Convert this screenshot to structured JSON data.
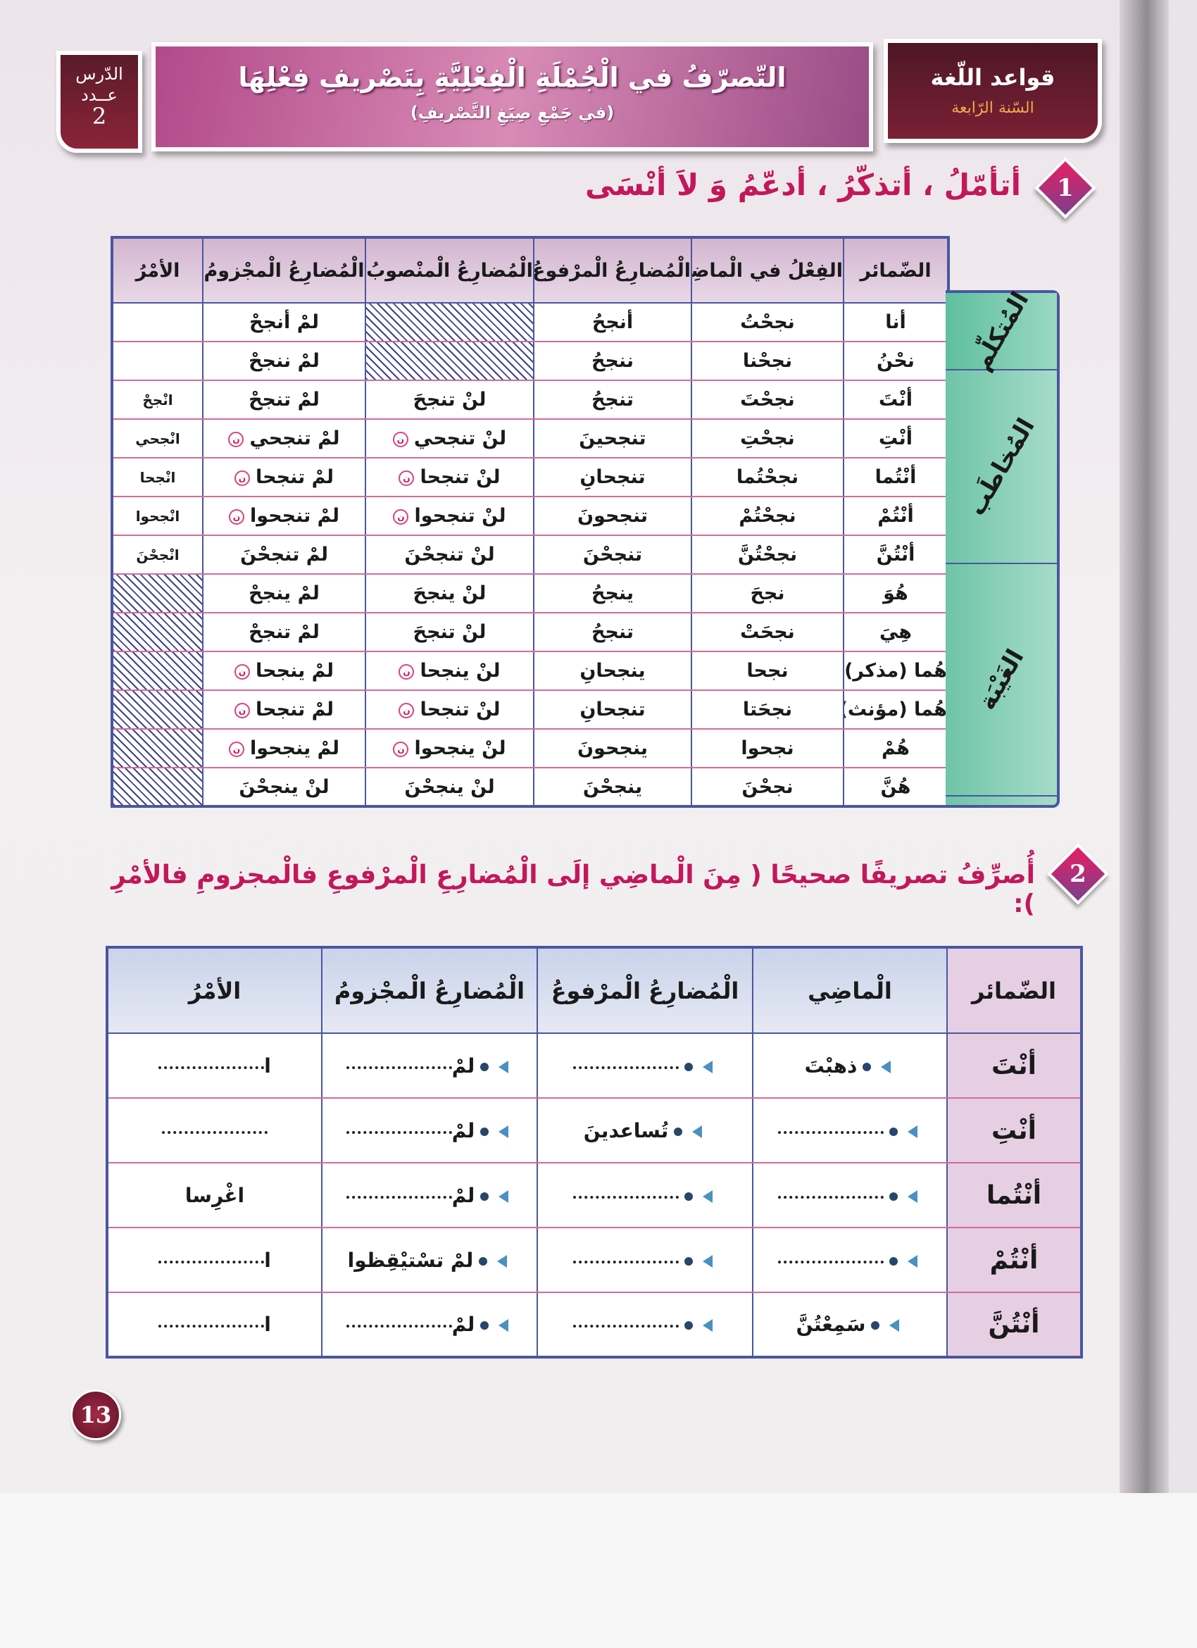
{
  "header": {
    "lesson": {
      "label": "الدّرس",
      "count_label": "عــدد",
      "number": "2"
    },
    "title": "التّصرّفُ في الْجُمْلَةِ الْفِعْلِيَّةِ بِتَصْريفِ فِعْلِهَا",
    "subtitle": "(في جَمْعِ صِيَغِ التَّصْريفِ)",
    "subject": "قواعد اللّغة",
    "grade": "السّنة الرّابعة"
  },
  "section1": {
    "number": "1",
    "heading": "أتأمّلُ ، أتذكّرُ ، أدعّمُ وَ لاَ أنْسَى"
  },
  "table1": {
    "headers": [
      "الضّمائر",
      "الفِعْلُ في الْماضِي",
      "الْمُضارِعُ الْمرْفوعُ",
      "الْمُضارِعُ الْمنْصوبُ",
      "الْمُضارِعُ الْمجْزومُ",
      "الأمْرُ"
    ],
    "categories": [
      {
        "label": "المُتكلّم",
        "rows": 2
      },
      {
        "label": "المُخاطَب",
        "rows": 5
      },
      {
        "label": "الغَيْبَة",
        "rows": 6
      }
    ],
    "mark_symbol": "ن",
    "rows": [
      {
        "pronoun": "أنا",
        "past": "نجحْتُ",
        "present": "أنجحُ",
        "subjunctive": null,
        "jussive": "لمْ أنجحْ",
        "imperative": "",
        "sub_mark": false,
        "jus_mark": false
      },
      {
        "pronoun": "نحْنُ",
        "past": "نجحْنا",
        "present": "ننجحُ",
        "subjunctive": null,
        "jussive": "لمْ ننجحْ",
        "imperative": "",
        "sub_mark": false,
        "jus_mark": false
      },
      {
        "pronoun": "أنْتَ",
        "past": "نجحْتَ",
        "present": "تنجحُ",
        "subjunctive": "لنْ تنجحَ",
        "jussive": "لمْ تنجحْ",
        "imperative": "انْجحْ",
        "sub_mark": false,
        "jus_mark": false
      },
      {
        "pronoun": "أنْتِ",
        "past": "نجحْتِ",
        "present": "تنجحينَ",
        "subjunctive": "لنْ تنجحي",
        "jussive": "لمْ تنجحي",
        "imperative": "انْجحي",
        "sub_mark": true,
        "jus_mark": true
      },
      {
        "pronoun": "أنْتُما",
        "past": "نجحْتُما",
        "present": "تنجحانِ",
        "subjunctive": "لنْ تنجحا",
        "jussive": "لمْ تنجحا",
        "imperative": "انْجحا",
        "sub_mark": true,
        "jus_mark": true
      },
      {
        "pronoun": "أنْتُمْ",
        "past": "نجحْتُمْ",
        "present": "تنجحونَ",
        "subjunctive": "لنْ تنجحوا",
        "jussive": "لمْ تنجحوا",
        "imperative": "انْجحوا",
        "sub_mark": true,
        "jus_mark": true
      },
      {
        "pronoun": "أنْتُنَّ",
        "past": "نجحْتُنَّ",
        "present": "تنجحْنَ",
        "subjunctive": "لنْ تنجحْنَ",
        "jussive": "لمْ تنجحْنَ",
        "imperative": "انْجحْنَ",
        "sub_mark": false,
        "jus_mark": false
      },
      {
        "pronoun": "هُوَ",
        "past": "نجحَ",
        "present": "ينجحُ",
        "subjunctive": "لنْ ينجحَ",
        "jussive": "لمْ ينجحْ",
        "imperative": null,
        "sub_mark": false,
        "jus_mark": false
      },
      {
        "pronoun": "هِيَ",
        "past": "نجحَتْ",
        "present": "تنجحُ",
        "subjunctive": "لنْ تنجحَ",
        "jussive": "لمْ تنجحْ",
        "imperative": null,
        "sub_mark": false,
        "jus_mark": false
      },
      {
        "pronoun": "هُما (مذكر)",
        "past": "نجحا",
        "present": "ينجحانِ",
        "subjunctive": "لنْ ينجحا",
        "jussive": "لمْ ينجحا",
        "imperative": null,
        "sub_mark": true,
        "jus_mark": true
      },
      {
        "pronoun": "هُما (مؤنث)",
        "past": "نجحَتا",
        "present": "تنجحانِ",
        "subjunctive": "لنْ تنجحا",
        "jussive": "لمْ تنجحا",
        "imperative": null,
        "sub_mark": true,
        "jus_mark": true
      },
      {
        "pronoun": "هُمْ",
        "past": "نجحوا",
        "present": "ينجحونَ",
        "subjunctive": "لنْ ينجحوا",
        "jussive": "لمْ ينجحوا",
        "imperative": null,
        "sub_mark": true,
        "jus_mark": true
      },
      {
        "pronoun": "هُنَّ",
        "past": "نجحْنَ",
        "present": "ينجحْنَ",
        "subjunctive": "لنْ ينجحْنَ",
        "jussive": "لنْ ينجحْنَ",
        "imperative": null,
        "sub_mark": false,
        "jus_mark": false
      }
    ]
  },
  "section2": {
    "number": "2",
    "heading": "أُصرِّفُ تصريفًا صحيحًا ( مِنَ الْماضِي إلَى الْمُضارِعِ الْمرْفوعِ فالْمجزومِ فالأمْرِ ):"
  },
  "table2": {
    "headers": [
      "الضّمائر",
      "الْماضِي",
      "الْمُضارِعُ الْمرْفوعُ",
      "الْمُضارِعُ الْمجْزومُ",
      "الأمْرُ"
    ],
    "rows": [
      {
        "pronoun": "أنْتَ",
        "past": "ذهبْتَ",
        "present": "",
        "jussive_prefix": "لمْ",
        "jussive": "",
        "imperative_prefix": "ا",
        "imperative": ""
      },
      {
        "pronoun": "أنْتِ",
        "past": "",
        "present": "تُساعدينَ",
        "jussive_prefix": "لمْ",
        "jussive": "",
        "imperative_prefix": "",
        "imperative": ""
      },
      {
        "pronoun": "أنْتُما",
        "past": "",
        "present": "",
        "jussive_prefix": "لمْ",
        "jussive": "",
        "imperative_prefix": "",
        "imperative": "اغْرِسا"
      },
      {
        "pronoun": "أنْتُمْ",
        "past": "",
        "present": "",
        "jussive_prefix": "",
        "jussive": "لمْ تسْتيْقِظوا",
        "imperative_prefix": "ا",
        "imperative": ""
      },
      {
        "pronoun": "أنْتُنَّ",
        "past": "سَمِعْتُنَّ",
        "present": "",
        "jussive_prefix": "لمْ",
        "jussive": "",
        "imperative_prefix": "ا",
        "imperative": ""
      }
    ]
  },
  "page_number": "13",
  "colors": {
    "accent": "#c2185b",
    "border": "#4a56a0",
    "category_green": "#8fd3bf",
    "title_banner": "#b24a8a",
    "subject_box": "#7a2035"
  }
}
